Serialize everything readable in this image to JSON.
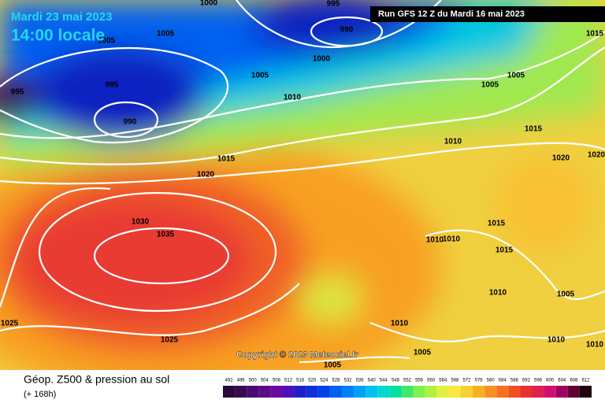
{
  "header": {
    "date": "Mardi 23 mai 2023",
    "time": "14:00 locale",
    "run": "Run GFS 12 Z du Mardi 16 mai 2023"
  },
  "map": {
    "isobar_labels": [
      1000,
      995,
      1005,
      990,
      1005,
      1015,
      995,
      995,
      1005,
      1000,
      1010,
      1005,
      1005,
      990,
      1015,
      1010,
      1015,
      1020,
      1020,
      1020,
      1030,
      1035,
      1015,
      1010,
      1010,
      1015,
      1010,
      1005,
      1025,
      1025,
      1010,
      1010,
      1010,
      1005,
      1005
    ]
  },
  "copyright": "Copyright © 2023 Meteociel.fr",
  "footer": {
    "title": "Géop. Z500 & pression au sol",
    "subtitle": "(+ 168h)"
  },
  "scale": {
    "labels": [
      492,
      496,
      500,
      504,
      508,
      512,
      516,
      520,
      524,
      528,
      532,
      536,
      540,
      544,
      548,
      552,
      556,
      560,
      564,
      568,
      572,
      576,
      580,
      584,
      588,
      592,
      596,
      600,
      604,
      608,
      612
    ],
    "colors": [
      "#2a0a3a",
      "#3a0a50",
      "#4a0a6e",
      "#5a0a8a",
      "#6a0aa0",
      "#5010b8",
      "#2020c8",
      "#1030d8",
      "#0040e8",
      "#0060f0",
      "#0080f8",
      "#00a0f8",
      "#00c0f0",
      "#00d8d0",
      "#00e0a0",
      "#40e870",
      "#80f050",
      "#b0f040",
      "#e0f040",
      "#f8e840",
      "#f8d030",
      "#f8b020",
      "#f89020",
      "#f87020",
      "#f05020",
      "#e83030",
      "#e02050",
      "#d01070",
      "#a00060",
      "#600030",
      "#200010"
    ]
  }
}
